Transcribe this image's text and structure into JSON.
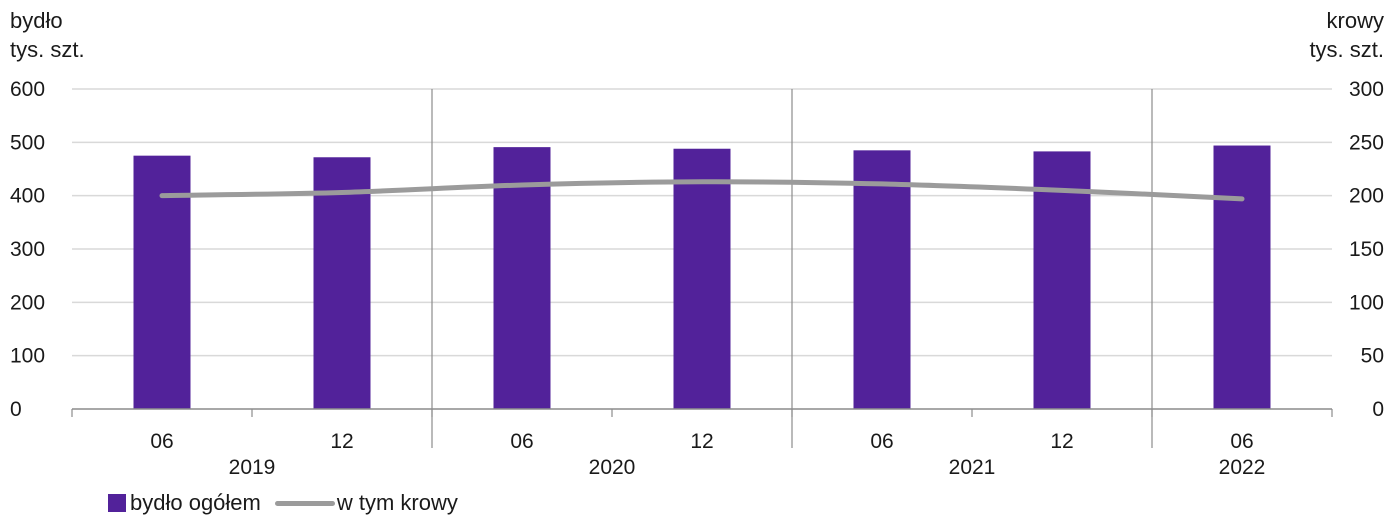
{
  "colors": {
    "bar": "#52229a",
    "line": "#9b9b9b",
    "grid": "#d9d9d9",
    "axis": "#8c8c8c"
  },
  "chart_data": {
    "type": "bar",
    "left_axis_title": [
      "bydło",
      "tys. szt."
    ],
    "right_axis_title": [
      "krowy",
      "tys. szt."
    ],
    "categories": [
      "06",
      "12",
      "06",
      "12",
      "06",
      "12",
      "06"
    ],
    "years": [
      {
        "label": "2019",
        "span": [
          0,
          1
        ]
      },
      {
        "label": "2020",
        "span": [
          2,
          3
        ]
      },
      {
        "label": "2021",
        "span": [
          4,
          5
        ]
      },
      {
        "label": "2022",
        "span": [
          6,
          6
        ]
      }
    ],
    "ylim": [
      0,
      600
    ],
    "y_ticks": [
      0,
      100,
      200,
      300,
      400,
      500,
      600
    ],
    "y2lim": [
      0,
      300
    ],
    "y2_ticks": [
      0,
      50,
      100,
      150,
      200,
      250,
      300
    ],
    "grid": true,
    "legend_position": "bottom-left",
    "series": [
      {
        "name": "bydło ogółem",
        "type": "bar",
        "axis": "left",
        "values": [
          475,
          472,
          491,
          488,
          485,
          483,
          494
        ]
      },
      {
        "name": "w tym krowy",
        "type": "line",
        "axis": "right",
        "values": [
          200,
          203,
          210,
          213,
          211,
          205,
          197
        ]
      }
    ]
  }
}
